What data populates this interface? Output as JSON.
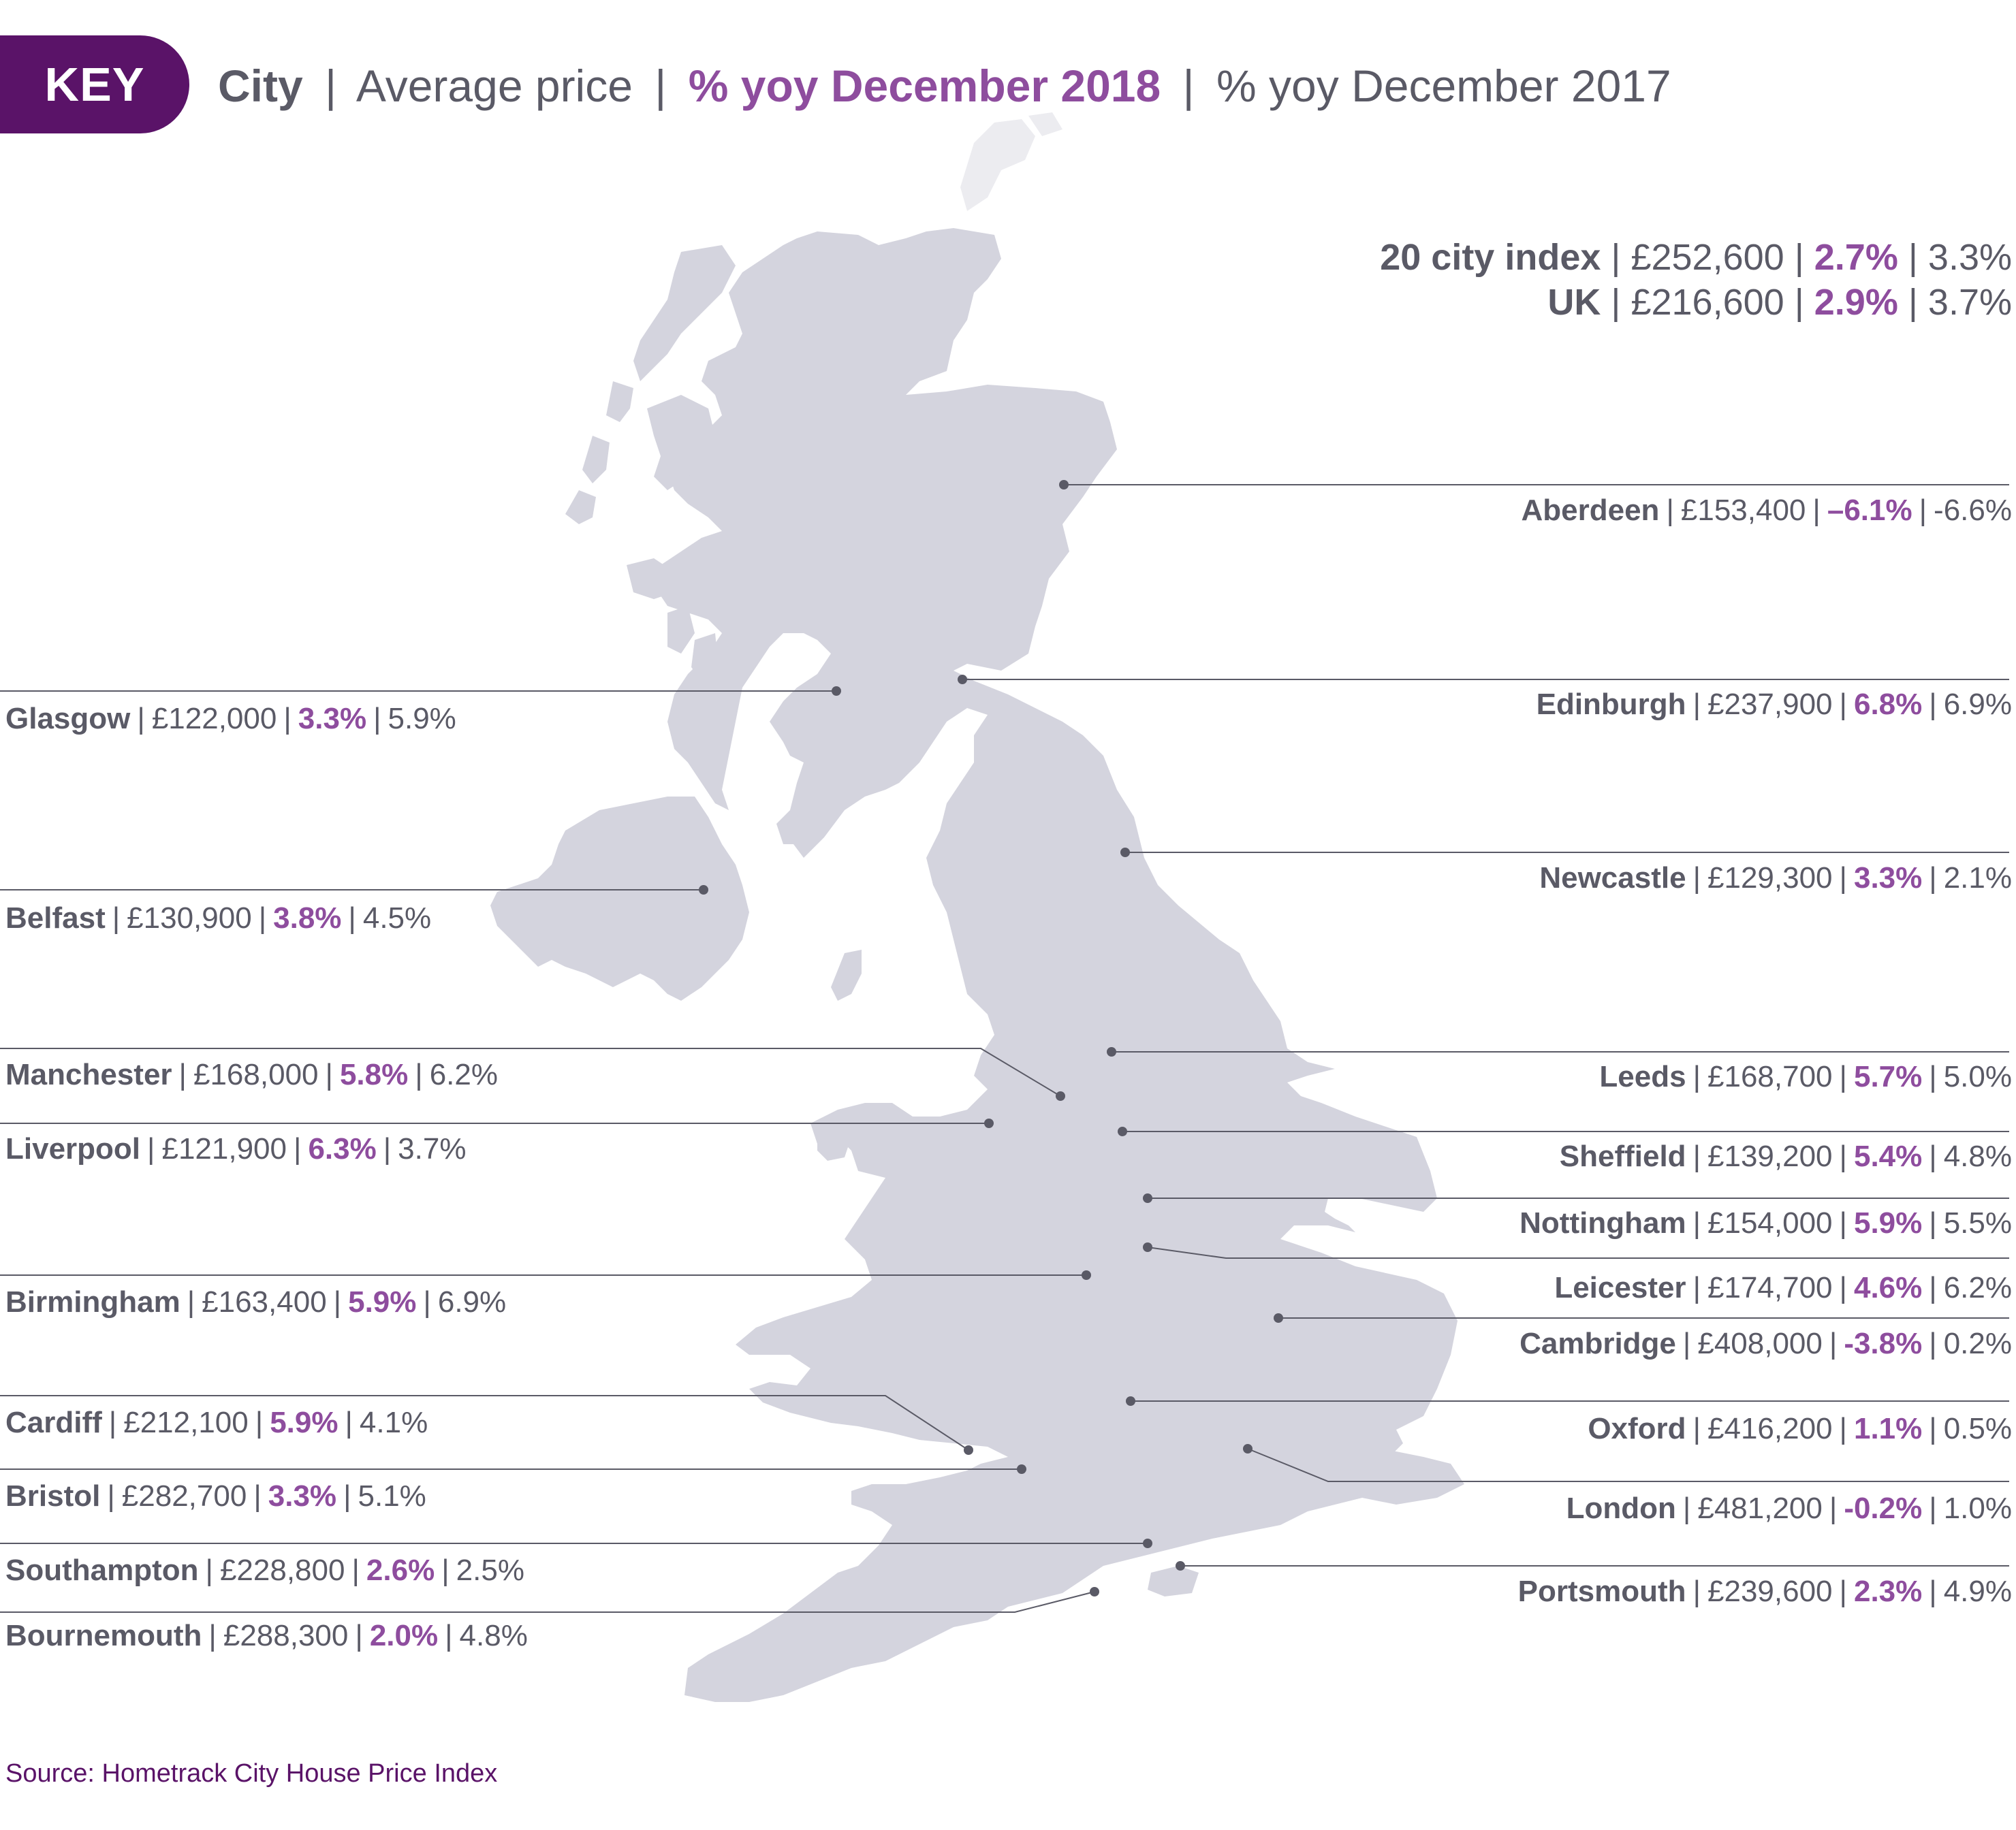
{
  "key": {
    "badge": "KEY",
    "city": "City",
    "avg": "Average price",
    "yoy18": "% yoy December 2018",
    "yoy17": "% yoy December 2017",
    "separator": "|"
  },
  "totals": [
    {
      "name": "20 city index",
      "price": "£252,600",
      "yoy18": "2.7%",
      "yoy17": "3.3%"
    },
    {
      "name": "UK",
      "price": "£216,600",
      "yoy18": "2.9%",
      "yoy17": "3.7%"
    }
  ],
  "cities": [
    {
      "name": "Aberdeen",
      "price": "£153,400",
      "yoy18": "–6.1%",
      "yoy17": "-6.6%"
    },
    {
      "name": "Edinburgh",
      "price": "£237,900",
      "yoy18": "6.8%",
      "yoy17": "6.9%"
    },
    {
      "name": "Newcastle",
      "price": "£129,300",
      "yoy18": "3.3%",
      "yoy17": "2.1%"
    },
    {
      "name": "Leeds",
      "price": "£168,700",
      "yoy18": "5.7%",
      "yoy17": "5.0%"
    },
    {
      "name": "Sheffield",
      "price": "£139,200",
      "yoy18": "5.4%",
      "yoy17": "4.8%"
    },
    {
      "name": "Nottingham",
      "price": "£154,000",
      "yoy18": "5.9%",
      "yoy17": "5.5%"
    },
    {
      "name": "Leicester",
      "price": "£174,700",
      "yoy18": "4.6%",
      "yoy17": "6.2%"
    },
    {
      "name": "Cambridge",
      "price": "£408,000",
      "yoy18": "-3.8%",
      "yoy17": "0.2%"
    },
    {
      "name": "Oxford",
      "price": "£416,200",
      "yoy18": "1.1%",
      "yoy17": "0.5%"
    },
    {
      "name": "London",
      "price": "£481,200",
      "yoy18": "-0.2%",
      "yoy17": "1.0%"
    },
    {
      "name": "Portsmouth",
      "price": "£239,600",
      "yoy18": "2.3%",
      "yoy17": "4.9%"
    },
    {
      "name": "Glasgow",
      "price": "£122,000",
      "yoy18": "3.3%",
      "yoy17": "5.9%"
    },
    {
      "name": "Belfast",
      "price": "£130,900",
      "yoy18": "3.8%",
      "yoy17": "4.5%"
    },
    {
      "name": "Manchester",
      "price": "£168,000",
      "yoy18": "5.8%",
      "yoy17": "6.2%"
    },
    {
      "name": "Liverpool",
      "price": "£121,900",
      "yoy18": "6.3%",
      "yoy17": "3.7%"
    },
    {
      "name": "Birmingham",
      "price": "£163,400",
      "yoy18": "5.9%",
      "yoy17": "6.9%"
    },
    {
      "name": "Cardiff",
      "price": "£212,100",
      "yoy18": "5.9%",
      "yoy17": "4.1%"
    },
    {
      "name": "Bristol",
      "price": "£282,700",
      "yoy18": "3.3%",
      "yoy17": "5.1%"
    },
    {
      "name": "Southampton",
      "price": "£228,800",
      "yoy18": "2.6%",
      "yoy17": "2.5%"
    },
    {
      "name": "Bournemouth",
      "price": "£288,300",
      "yoy18": "2.0%",
      "yoy17": "4.8%"
    }
  ],
  "source": "Source: Hometrack City House Price Index",
  "colors": {
    "land": "#d4d4de",
    "land_faint": "#ececf0",
    "accent": "#8e4d9e",
    "badge": "#5a1368",
    "text": "#5a5a66",
    "leader": "#5a5a66"
  }
}
